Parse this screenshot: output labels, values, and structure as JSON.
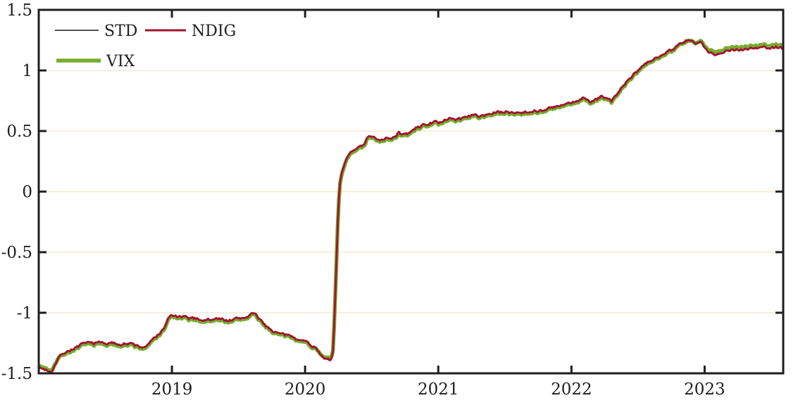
{
  "chart_data": {
    "type": "line",
    "title": "",
    "xlabel": "",
    "ylabel": "",
    "x_axis": {
      "range": [
        2018.0,
        2023.59
      ],
      "ticks": [
        2019,
        2020,
        2021,
        2022,
        2023
      ],
      "tick_labels": [
        "2019",
        "2020",
        "2021",
        "2022",
        "2023"
      ]
    },
    "y_axis": {
      "range": [
        -1.5,
        1.5
      ],
      "ticks": [
        -1.5,
        -1,
        -0.5,
        0,
        0.5,
        1,
        1.5
      ],
      "tick_labels": [
        "-1.5",
        "-1",
        "-0.5",
        "0",
        "0.5",
        "1",
        "1.5"
      ],
      "gridlines": [
        -1,
        -0.5,
        0,
        0.5,
        1
      ]
    },
    "grid_on": true,
    "grid_color": "#f9efdb",
    "axis_color": "#1f1f1f",
    "background_color": "#ffffff",
    "legend": {
      "position": "top-left-inside",
      "entries": [
        {
          "label": "STD",
          "color": "#1a1a1a",
          "line_width": 1.6
        },
        {
          "label": "NDIG",
          "color": "#a2142f",
          "line_width": 3.0
        },
        {
          "label": "VIX",
          "color": "#77ac30",
          "line_width": 5.5
        }
      ]
    },
    "base_points": [
      [
        2018.0,
        -1.44
      ],
      [
        2018.04,
        -1.455
      ],
      [
        2018.08,
        -1.467
      ],
      [
        2018.1,
        -1.46
      ],
      [
        2018.12,
        -1.42
      ],
      [
        2018.14,
        -1.385
      ],
      [
        2018.17,
        -1.35
      ],
      [
        2018.2,
        -1.332
      ],
      [
        2018.24,
        -1.315
      ],
      [
        2018.28,
        -1.297
      ],
      [
        2018.32,
        -1.275
      ],
      [
        2018.38,
        -1.265
      ],
      [
        2018.45,
        -1.26
      ],
      [
        2018.52,
        -1.263
      ],
      [
        2018.58,
        -1.27
      ],
      [
        2018.64,
        -1.262
      ],
      [
        2018.7,
        -1.272
      ],
      [
        2018.74,
        -1.288
      ],
      [
        2018.78,
        -1.298
      ],
      [
        2018.82,
        -1.275
      ],
      [
        2018.85,
        -1.245
      ],
      [
        2018.88,
        -1.212
      ],
      [
        2018.91,
        -1.176
      ],
      [
        2018.935,
        -1.155
      ],
      [
        2018.955,
        -1.102
      ],
      [
        2018.975,
        -1.056
      ],
      [
        2019.0,
        -1.035
      ],
      [
        2019.05,
        -1.048
      ],
      [
        2019.1,
        -1.052
      ],
      [
        2019.16,
        -1.058
      ],
      [
        2019.22,
        -1.064
      ],
      [
        2019.28,
        -1.07
      ],
      [
        2019.34,
        -1.062
      ],
      [
        2019.4,
        -1.068
      ],
      [
        2019.46,
        -1.068
      ],
      [
        2019.52,
        -1.058
      ],
      [
        2019.56,
        -1.044
      ],
      [
        2019.6,
        -1.01
      ],
      [
        2019.63,
        -1.032
      ],
      [
        2019.66,
        -1.072
      ],
      [
        2019.7,
        -1.11
      ],
      [
        2019.74,
        -1.145
      ],
      [
        2019.78,
        -1.17
      ],
      [
        2019.82,
        -1.19
      ],
      [
        2019.86,
        -1.2
      ],
      [
        2019.9,
        -1.21
      ],
      [
        2019.95,
        -1.222
      ],
      [
        2020.0,
        -1.245
      ],
      [
        2020.04,
        -1.27
      ],
      [
        2020.08,
        -1.3
      ],
      [
        2020.12,
        -1.335
      ],
      [
        2020.15,
        -1.362
      ],
      [
        2020.18,
        -1.385
      ],
      [
        2020.195,
        -1.392
      ],
      [
        2020.21,
        -1.32
      ],
      [
        2020.22,
        -1.06
      ],
      [
        2020.23,
        -0.75
      ],
      [
        2020.24,
        -0.42
      ],
      [
        2020.25,
        -0.12
      ],
      [
        2020.26,
        0.04
      ],
      [
        2020.27,
        0.12
      ],
      [
        2020.285,
        0.19
      ],
      [
        2020.3,
        0.24
      ],
      [
        2020.32,
        0.275
      ],
      [
        2020.34,
        0.3
      ],
      [
        2020.37,
        0.325
      ],
      [
        2020.4,
        0.345
      ],
      [
        2020.43,
        0.365
      ],
      [
        2020.45,
        0.375
      ],
      [
        2020.462,
        0.42
      ],
      [
        2020.48,
        0.435
      ],
      [
        2020.52,
        0.43
      ],
      [
        2020.56,
        0.425
      ],
      [
        2020.6,
        0.43
      ],
      [
        2020.64,
        0.436
      ],
      [
        2020.68,
        0.444
      ],
      [
        2020.7,
        0.485
      ],
      [
        2020.72,
        0.462
      ],
      [
        2020.74,
        0.452
      ],
      [
        2020.78,
        0.468
      ],
      [
        2020.82,
        0.5
      ],
      [
        2020.86,
        0.525
      ],
      [
        2020.9,
        0.548
      ],
      [
        2020.95,
        0.556
      ],
      [
        2021.0,
        0.562
      ],
      [
        2021.05,
        0.576
      ],
      [
        2021.1,
        0.585
      ],
      [
        2021.15,
        0.592
      ],
      [
        2021.2,
        0.6
      ],
      [
        2021.23,
        0.625
      ],
      [
        2021.26,
        0.612
      ],
      [
        2021.3,
        0.616
      ],
      [
        2021.34,
        0.622
      ],
      [
        2021.38,
        0.634
      ],
      [
        2021.42,
        0.64
      ],
      [
        2021.48,
        0.642
      ],
      [
        2021.54,
        0.645
      ],
      [
        2021.6,
        0.647
      ],
      [
        2021.66,
        0.651
      ],
      [
        2021.72,
        0.657
      ],
      [
        2021.78,
        0.665
      ],
      [
        2021.84,
        0.673
      ],
      [
        2021.9,
        0.69
      ],
      [
        2021.96,
        0.706
      ],
      [
        2022.02,
        0.722
      ],
      [
        2022.06,
        0.746
      ],
      [
        2022.09,
        0.775
      ],
      [
        2022.12,
        0.746
      ],
      [
        2022.15,
        0.722
      ],
      [
        2022.19,
        0.746
      ],
      [
        2022.23,
        0.785
      ],
      [
        2022.26,
        0.762
      ],
      [
        2022.3,
        0.738
      ],
      [
        2022.34,
        0.79
      ],
      [
        2022.38,
        0.858
      ],
      [
        2022.42,
        0.9
      ],
      [
        2022.47,
        0.952
      ],
      [
        2022.52,
        1.005
      ],
      [
        2022.57,
        1.05
      ],
      [
        2022.63,
        1.09
      ],
      [
        2022.68,
        1.13
      ],
      [
        2022.73,
        1.155
      ],
      [
        2022.78,
        1.185
      ],
      [
        2022.83,
        1.215
      ],
      [
        2022.89,
        1.245
      ],
      [
        2022.93,
        1.22
      ],
      [
        2022.97,
        1.235
      ],
      [
        2023.0,
        1.195
      ],
      [
        2023.03,
        1.168
      ],
      [
        2023.08,
        1.16
      ],
      [
        2023.13,
        1.176
      ],
      [
        2023.2,
        1.19
      ],
      [
        2023.28,
        1.198
      ],
      [
        2023.36,
        1.202
      ],
      [
        2023.45,
        1.206
      ],
      [
        2023.52,
        1.208
      ],
      [
        2023.59,
        1.21
      ]
    ],
    "series": [
      {
        "name": "VIX",
        "color": "#77ac30",
        "width": 5.5,
        "offset_points": [
          [
            2018.0,
            0
          ],
          [
            2023.59,
            0
          ]
        ]
      },
      {
        "name": "STD",
        "color": "#1a1a1a",
        "width": 1.5,
        "offset_points": [
          [
            2018.0,
            -0.012
          ],
          [
            2018.1,
            -0.012
          ],
          [
            2018.18,
            0.01
          ],
          [
            2018.3,
            0.012
          ],
          [
            2020.06,
            0.01
          ],
          [
            2020.14,
            -0.008
          ],
          [
            2020.2,
            -0.012
          ],
          [
            2020.27,
            0.012
          ],
          [
            2022.75,
            0.01
          ],
          [
            2022.9,
            0.002
          ],
          [
            2022.99,
            -0.01
          ],
          [
            2023.06,
            -0.022
          ],
          [
            2023.2,
            -0.02
          ],
          [
            2023.59,
            -0.018
          ]
        ]
      },
      {
        "name": "NDIG",
        "color": "#a2142f",
        "width": 2.8,
        "offset_points": [
          [
            2018.0,
            -0.012
          ],
          [
            2018.1,
            -0.012
          ],
          [
            2018.18,
            0.01
          ],
          [
            2018.3,
            0.012
          ],
          [
            2020.06,
            0.01
          ],
          [
            2020.14,
            -0.008
          ],
          [
            2020.2,
            -0.012
          ],
          [
            2020.27,
            0.012
          ],
          [
            2022.75,
            0.01
          ],
          [
            2022.9,
            0.002
          ],
          [
            2022.99,
            -0.01
          ],
          [
            2023.06,
            -0.022
          ],
          [
            2023.2,
            -0.02
          ],
          [
            2023.59,
            -0.018
          ]
        ]
      }
    ],
    "noise_amplitude": 0.009
  }
}
